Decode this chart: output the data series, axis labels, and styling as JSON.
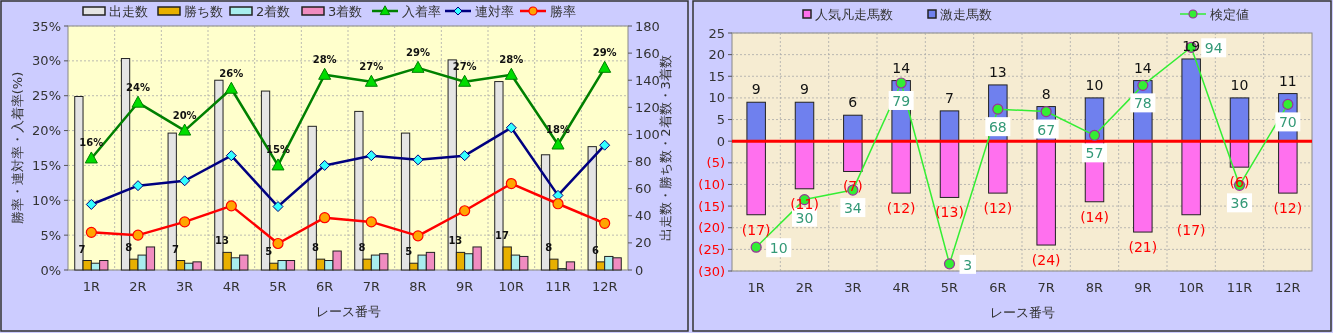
{
  "chart_data": [
    {
      "type": "bar",
      "categories": [
        "1R",
        "2R",
        "3R",
        "4R",
        "5R",
        "6R",
        "7R",
        "8R",
        "9R",
        "10R",
        "11R",
        "12R"
      ],
      "xlabel": "レース番号",
      "ylabel": "勝率・連対率・入着率(%)",
      "y2label": "出走数・勝ち数・2着数・3着数",
      "ylim": [
        0,
        35
      ],
      "yticks": [
        {
          "value": 0,
          "label": "0%"
        },
        {
          "value": 5,
          "label": "5%"
        },
        {
          "value": 10,
          "label": "10%"
        },
        {
          "value": 15,
          "label": "15%"
        },
        {
          "value": 20,
          "label": "20%"
        },
        {
          "value": 25,
          "label": "25%"
        },
        {
          "value": 30,
          "label": "30%"
        },
        {
          "value": 35,
          "label": "35%"
        }
      ],
      "y2lim": [
        0,
        180
      ],
      "y2ticks": [
        0,
        20,
        40,
        60,
        80,
        100,
        120,
        140,
        160,
        180
      ],
      "grid": true,
      "legend": "top",
      "series": [
        {
          "name": "出走数",
          "color": "#e4e4e4",
          "axis": "y2",
          "values": [
            128,
            156,
            101,
            140,
            132,
            106,
            117,
            101,
            155,
            139,
            85,
            91
          ]
        },
        {
          "name": "勝ち数",
          "color": "#e8b000",
          "axis": "y2",
          "values": [
            7,
            8,
            7,
            13,
            5,
            8,
            8,
            5,
            13,
            17,
            8,
            6
          ],
          "value_labels": [
            "7",
            "8",
            "7",
            "13",
            "5",
            "8",
            "8",
            "5",
            "13",
            "17",
            "8",
            "6"
          ]
        },
        {
          "name": "2着数",
          "color": "#a8eeee",
          "axis": "y2",
          "values": [
            5,
            11,
            5,
            9,
            7,
            7,
            11,
            11,
            12,
            11,
            1,
            10
          ]
        },
        {
          "name": "3着数",
          "color": "#f08cc0",
          "axis": "y2",
          "values": [
            7,
            17,
            6,
            11,
            7,
            14,
            12,
            13,
            17,
            10,
            6,
            9
          ]
        },
        {
          "name": "入着率",
          "type": "line",
          "color": "#008000",
          "marker": "triangle",
          "values": [
            16,
            24,
            20,
            26,
            15,
            28,
            27,
            29,
            27,
            28,
            18,
            29
          ],
          "value_labels": [
            "16%",
            "24%",
            "20%",
            "26%",
            "15%",
            "28%",
            "27%",
            "29%",
            "27%",
            "28%",
            "18%",
            "29%"
          ]
        },
        {
          "name": "連対率",
          "type": "line",
          "color": "#000080",
          "marker": "diamond",
          "values": [
            9.4,
            12.1,
            12.8,
            16.4,
            9.1,
            15.0,
            16.4,
            15.8,
            16.4,
            20.4,
            10.7,
            17.9
          ]
        },
        {
          "name": "勝率",
          "type": "line",
          "color": "#ff0000",
          "marker": "circle",
          "values": [
            5.4,
            5.0,
            6.9,
            9.2,
            3.8,
            7.5,
            6.9,
            4.9,
            8.5,
            12.4,
            9.5,
            6.7
          ]
        }
      ]
    },
    {
      "type": "bar",
      "stacked": true,
      "categories": [
        "1R",
        "2R",
        "3R",
        "4R",
        "5R",
        "6R",
        "7R",
        "8R",
        "9R",
        "10R",
        "11R",
        "12R"
      ],
      "xlabel": "レース番号",
      "ylim": [
        -30,
        25
      ],
      "yticks": [
        25,
        20,
        15,
        10,
        5,
        0,
        {
          "value": -5,
          "label": "(5)"
        },
        {
          "value": -10,
          "label": "(10)"
        },
        {
          "value": -15,
          "label": "(15)"
        },
        {
          "value": -20,
          "label": "(20)"
        },
        {
          "value": -25,
          "label": "(25)"
        },
        {
          "value": -30,
          "label": "(30)"
        }
      ],
      "y2lim": [
        0,
        100
      ],
      "grid": true,
      "legend": "top",
      "ref_lines": [
        {
          "axis": "y",
          "value": 0,
          "color": "#ff0000"
        }
      ],
      "series": [
        {
          "name": "人気凡走馬数",
          "color": "#ff70ee",
          "values": [
            -17,
            -11,
            -7,
            -12,
            -13,
            -12,
            -24,
            -14,
            -21,
            -17,
            -6,
            -12
          ],
          "value_labels": [
            "(17)",
            "(11)",
            "(7)",
            "(12)",
            "(13)",
            "(12)",
            "(24)",
            "(14)",
            "(21)",
            "(17)",
            "(6)",
            "(12)"
          ]
        },
        {
          "name": "激走馬数",
          "color": "#6f80ee",
          "values": [
            9,
            9,
            6,
            14,
            7,
            13,
            8,
            10,
            14,
            19,
            10,
            11
          ],
          "value_labels": [
            "9",
            "9",
            "6",
            "14",
            "7",
            "13",
            "8",
            "10",
            "14",
            "19",
            "10",
            "11"
          ]
        },
        {
          "name": "検定値",
          "type": "line",
          "axis": "y2",
          "color": "#33ee33",
          "marker": "circle",
          "values": [
            10,
            30,
            34,
            79,
            3,
            68,
            67,
            57,
            78,
            94,
            36,
            70
          ],
          "value_labels": [
            "10",
            "30",
            "34",
            "79",
            "3",
            "68",
            "67",
            "57",
            "78",
            "94",
            "36",
            "70"
          ]
        }
      ]
    }
  ]
}
